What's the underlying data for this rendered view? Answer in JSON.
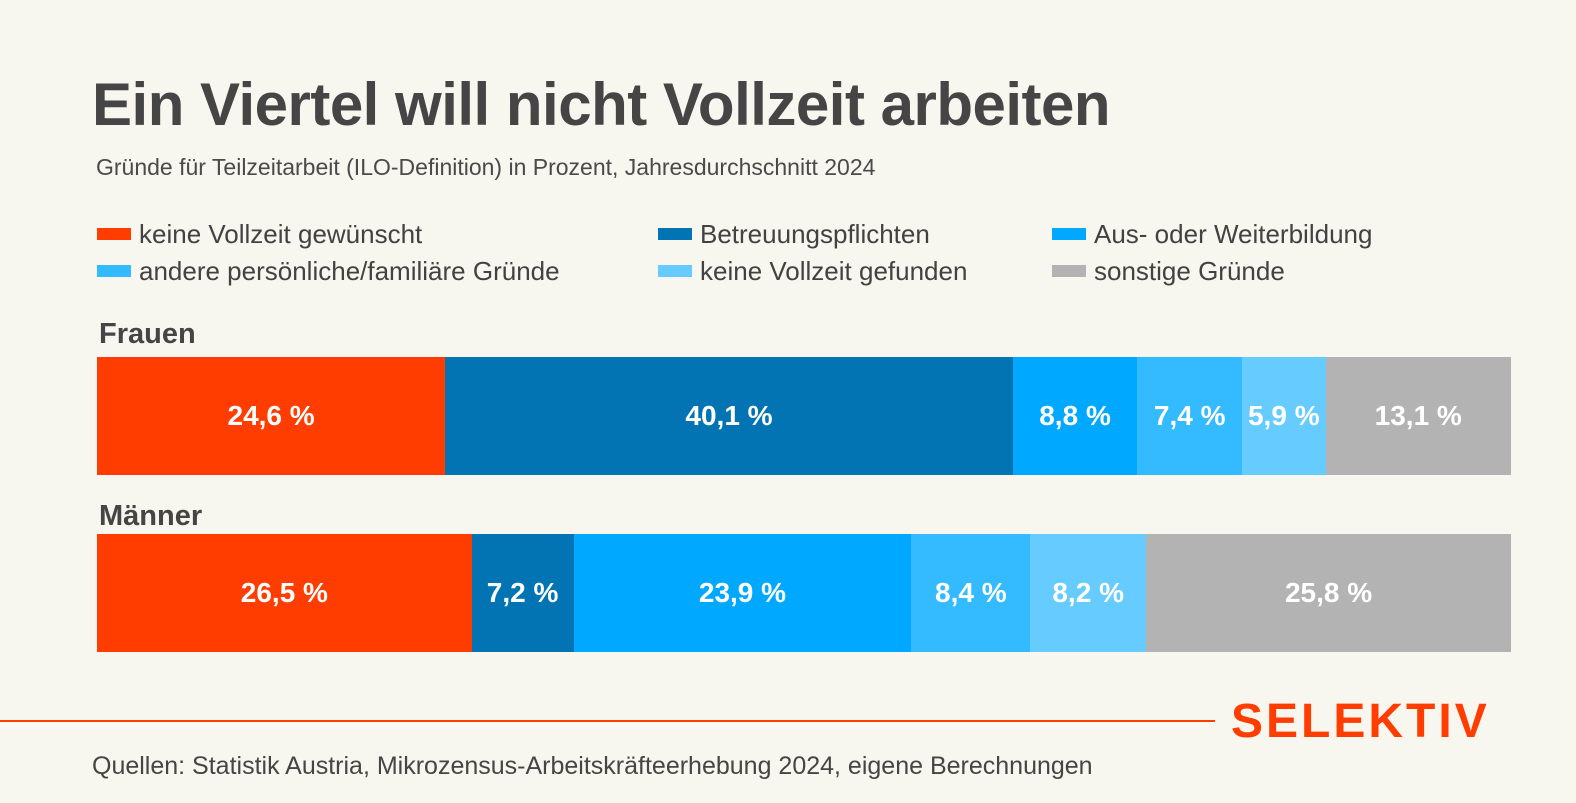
{
  "chart_data": {
    "type": "bar",
    "stacked": true,
    "orientation": "horizontal",
    "title": "Ein Viertel will nicht Vollzeit arbeiten",
    "subtitle": "Gründe für Teilzeitarbeit (ILO-Definition) in Prozent, Jahresdurchschnitt 2024",
    "categories": [
      "Frauen",
      "Männer"
    ],
    "series": [
      {
        "name": "keine Vollzeit gewünscht",
        "color": "#ff3d00",
        "values": [
          24.6,
          26.5
        ],
        "labels": [
          "24,6 %",
          "26,5 %"
        ]
      },
      {
        "name": "Betreuungspflichten",
        "color": "#0274b4",
        "values": [
          40.1,
          7.2
        ],
        "labels": [
          "40,1 %",
          "7,2 %"
        ]
      },
      {
        "name": "Aus- oder Weiterbildung",
        "color": "#00a8ff",
        "values": [
          8.8,
          23.9
        ],
        "labels": [
          "8,8 %",
          "23,9 %"
        ]
      },
      {
        "name": "andere persönliche/familiäre Gründe",
        "color": "#33baff",
        "values": [
          7.4,
          8.4
        ],
        "labels": [
          "7,4 %",
          "8,4 %"
        ]
      },
      {
        "name": "keine Vollzeit gefunden",
        "color": "#66ccff",
        "values": [
          5.9,
          8.2
        ],
        "labels": [
          "5,9 %",
          "8,2 %"
        ]
      },
      {
        "name": "sonstige Gründe",
        "color": "#b3b3b3",
        "values": [
          13.1,
          25.8
        ],
        "labels": [
          "13,1 %",
          "25,8 %"
        ]
      }
    ],
    "xlim": [
      0,
      100
    ],
    "grid": false,
    "legend_placement": "top"
  },
  "brand": "SELEKTIV",
  "source": "Quellen: Statistik Austria, Mikrozensus-Arbeitskräfteerhebung 2024, eigene Berechnungen",
  "colors": {
    "background": "#f7f6ef",
    "accent": "#ff3d00",
    "text": "#424242"
  }
}
